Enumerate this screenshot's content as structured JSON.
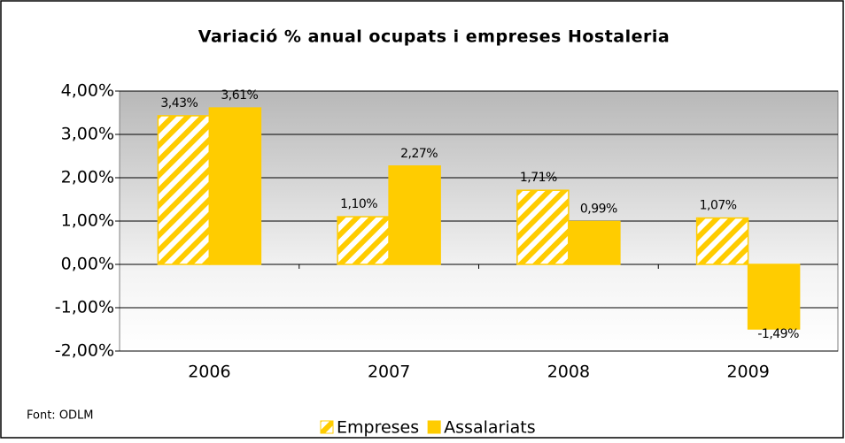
{
  "chart_data": {
    "type": "bar",
    "title": "Variació % anual ocupats i empreses Hostaleria",
    "categories": [
      "2006",
      "2007",
      "2008",
      "2009"
    ],
    "series": [
      {
        "name": "Empreses",
        "color": "#ffcc00",
        "pattern": "hatch",
        "values": [
          3.43,
          1.1,
          1.71,
          1.07
        ],
        "value_labels": [
          "3,43%",
          "1,10%",
          "1,71%",
          "1,07%"
        ]
      },
      {
        "name": "Assalariats",
        "color": "#ffcc00",
        "values": [
          3.61,
          2.27,
          0.99,
          -1.49
        ],
        "value_labels": [
          "3,61%",
          "2,27%",
          "0,99%",
          "-1,49%"
        ]
      }
    ],
    "ylim": [
      -2,
      4
    ],
    "yticks": [
      {
        "value": -2,
        "label": "-2,00%"
      },
      {
        "value": -1,
        "label": "-1,00%"
      },
      {
        "value": 0,
        "label": "0,00%"
      },
      {
        "value": 1,
        "label": "1,00%"
      },
      {
        "value": 2,
        "label": "2,00%"
      },
      {
        "value": 3,
        "label": "3,00%"
      },
      {
        "value": 4,
        "label": "4,00%"
      }
    ],
    "grid": true,
    "legend": "bottom",
    "source": "Font: ODLM"
  }
}
